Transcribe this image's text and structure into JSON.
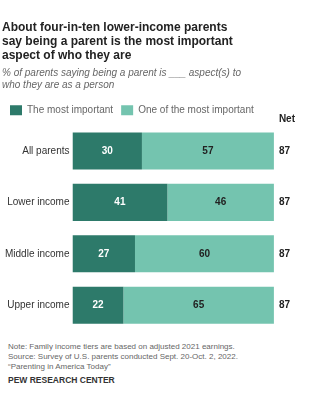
{
  "chart_data": {
    "type": "bar",
    "orientation": "horizontal",
    "stacked": true,
    "title": [
      "About four-in-ten lower-income parents",
      "say being a parent is the most important",
      "aspect of who they are"
    ],
    "subtitle": [
      "% of parents saying being a parent is ___ aspect(s) to",
      "who they are as a person"
    ],
    "categories": [
      "All parents",
      "Lower income",
      "Middle income",
      "Upper income"
    ],
    "series": [
      {
        "name": "The most important",
        "color": "#2d7a6a",
        "values": [
          30,
          41,
          27,
          22
        ]
      },
      {
        "name": "One of the most important",
        "color": "#74c4af",
        "values": [
          57,
          46,
          60,
          65
        ]
      }
    ],
    "net_label": "Net",
    "net_values": [
      87,
      87,
      87,
      87
    ],
    "xlim": [
      0,
      100
    ],
    "grid": false,
    "tick_labels": "y",
    "data_labels": true,
    "legend": "top",
    "note": [
      "Note: Family income tiers are based on adjusted 2021 earnings.",
      "Source: Survey of U.S. parents conducted Sept. 20-Oct. 2, 2022.",
      "“Parenting in America Today”"
    ],
    "source": "PEW RESEARCH CENTER"
  }
}
